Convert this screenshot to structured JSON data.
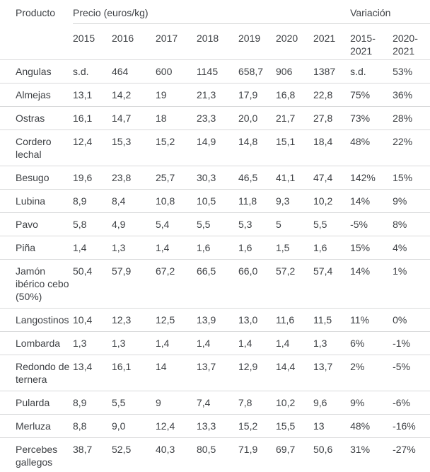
{
  "chart_data": {
    "type": "table",
    "column_groups": [
      {
        "label": "Precio (euros/kg)",
        "span": 7
      },
      {
        "label": "Variación",
        "span": 2
      }
    ],
    "columns": [
      "Producto",
      "2015",
      "2016",
      "2017",
      "2018",
      "2019",
      "2020",
      "2021",
      "2015-2021",
      "2020-2021"
    ],
    "rows": [
      [
        "Angulas",
        "s.d.",
        "464",
        "600",
        "1145",
        "658,7",
        "906",
        "1387",
        "s.d.",
        "53%"
      ],
      [
        "Almejas",
        "13,1",
        "14,2",
        "19",
        "21,3",
        "17,9",
        "16,8",
        "22,8",
        "75%",
        "36%"
      ],
      [
        "Ostras",
        "16,1",
        "14,7",
        "18",
        "23,3",
        "20,0",
        "21,7",
        "27,8",
        "73%",
        "28%"
      ],
      [
        "Cordero lechal",
        "12,4",
        "15,3",
        "15,2",
        "14,9",
        "14,8",
        "15,1",
        "18,4",
        "48%",
        "22%"
      ],
      [
        "Besugo",
        "19,6",
        "23,8",
        "25,7",
        "30,3",
        "46,5",
        "41,1",
        "47,4",
        "142%",
        "15%"
      ],
      [
        "Lubina",
        "8,9",
        "8,4",
        "10,8",
        "10,5",
        "11,8",
        "9,3",
        "10,2",
        "14%",
        "9%"
      ],
      [
        "Pavo",
        "5,8",
        "4,9",
        "5,4",
        "5,5",
        "5,3",
        "5",
        "5,5",
        "-5%",
        "8%"
      ],
      [
        "Piña",
        "1,4",
        "1,3",
        "1,4",
        "1,6",
        "1,6",
        "1,5",
        "1,6",
        "15%",
        "4%"
      ],
      [
        "Jamón ibérico cebo (50%)",
        "50,4",
        "57,9",
        "67,2",
        "66,5",
        "66,0",
        "57,2",
        "57,4",
        "14%",
        "1%"
      ],
      [
        "Langostinos",
        "10,4",
        "12,3",
        "12,5",
        "13,9",
        "13,0",
        "11,6",
        "11,5",
        "11%",
        "0%"
      ],
      [
        "Lombarda",
        "1,3",
        "1,3",
        "1,4",
        "1,4",
        "1,4",
        "1,4",
        "1,3",
        "6%",
        "-1%"
      ],
      [
        "Redondo de ternera",
        "13,4",
        "16,1",
        "14",
        "13,7",
        "12,9",
        "14,4",
        "13,7",
        "2%",
        "-5%"
      ],
      [
        "Pularda",
        "8,9",
        "5,5",
        "9",
        "7,4",
        "7,8",
        "10,2",
        "9,6",
        "9%",
        "-6%"
      ],
      [
        "Merluza",
        "8,8",
        "9,0",
        "12,4",
        "13,3",
        "15,2",
        "15,5",
        "13",
        "48%",
        "-16%"
      ],
      [
        "Percebes gallegos",
        "38,7",
        "52,5",
        "40,3",
        "80,5",
        "71,9",
        "69,7",
        "50,6",
        "31%",
        "-27%"
      ]
    ],
    "layout": {
      "grid": "horizontal-row-dividers-only",
      "header_group_underline": true,
      "text_color": "#3e4145",
      "divider_color": "#d9dadb"
    }
  }
}
